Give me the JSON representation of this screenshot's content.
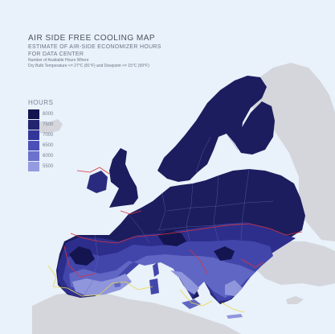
{
  "title": "AIR SIDE FREE COOLING MAP",
  "subtitle_1": "ESTIMATE OF AIR-SIDE ECONOMIZER HOURS",
  "subtitle_2": "FOR DATA CENTER",
  "note_1": "Number of Available Hours Where",
  "note_2": "Dry Bulb Temperature <= 27°C (81°F) and Dewpoint <= 15°C (59°F)",
  "legend": {
    "title": "HOURS",
    "items": [
      {
        "label": "8000",
        "color": "#141550"
      },
      {
        "label": "7500",
        "color": "#232470"
      },
      {
        "label": "7000",
        "color": "#34359a"
      },
      {
        "label": "6500",
        "color": "#4b4fb8"
      },
      {
        "label": "6000",
        "color": "#6b71cc"
      },
      {
        "label": "5500",
        "color": "#959be0"
      }
    ]
  },
  "colors": {
    "background": "#e9f1fa",
    "land_outside": "#d4d6dc",
    "contour_red": "#d8333c",
    "contour_yellow": "#e9d84a",
    "border": "#6062a6"
  }
}
